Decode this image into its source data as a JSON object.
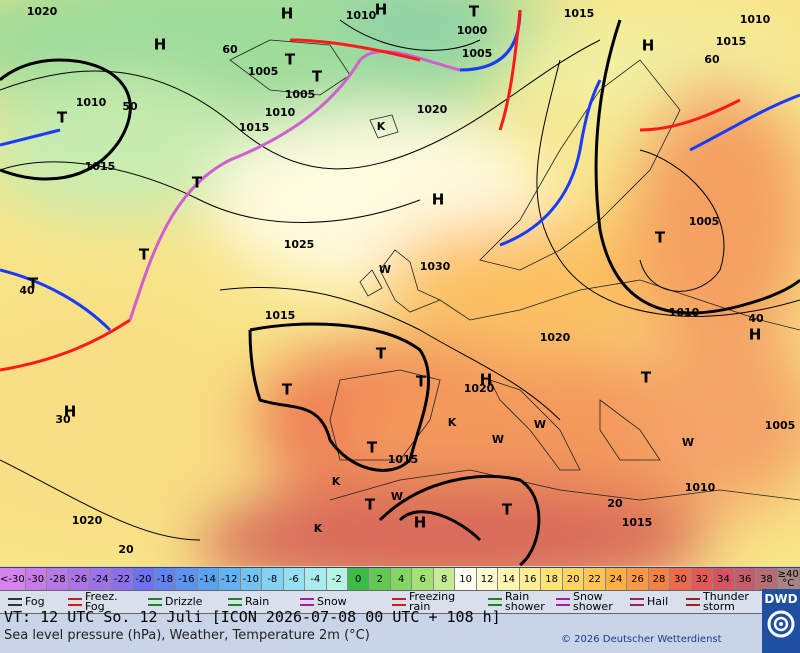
{
  "map": {
    "labels": [
      "1020",
      "H",
      "1010",
      "H",
      "T",
      "1015",
      "1010",
      "H",
      "60",
      "1000",
      "1005",
      "H",
      "1015",
      "60",
      "1005",
      "T",
      "T",
      "1005",
      "1010",
      "50",
      "1010",
      "1020",
      "T",
      "1015",
      "K",
      "1015",
      "T",
      "H",
      "1005",
      "T",
      "1025",
      "T",
      "W",
      "1030",
      "T",
      "40",
      "1015",
      "1010",
      "40",
      "H",
      "1020",
      "T",
      "T",
      "T",
      "H",
      "1020",
      "T",
      "H",
      "30",
      "K",
      "W",
      "W",
      "W",
      "1005",
      "T",
      "1015",
      "K",
      "1010",
      "T",
      "W",
      "20",
      "H",
      "T",
      "1015",
      "1020",
      "K",
      "20"
    ]
  },
  "scale": {
    "below_label": "<-30",
    "above_label": "≥40 °C",
    "below_color": "#d483ec",
    "above_color": "#a98484",
    "values": [
      -30,
      -28,
      -26,
      -24,
      -22,
      -20,
      -18,
      -16,
      -14,
      -12,
      -10,
      -8,
      -6,
      -4,
      -2,
      0,
      2,
      4,
      6,
      8,
      10,
      12,
      14,
      16,
      18,
      20,
      22,
      24,
      26,
      28,
      30,
      32,
      34,
      36,
      38
    ],
    "colors": [
      "#c67be6",
      "#b878e6",
      "#aa74e6",
      "#9c72e8",
      "#8c70ea",
      "#6c72f0",
      "#6282f0",
      "#5c92f0",
      "#5aa2f0",
      "#62b2f2",
      "#72c2f2",
      "#84d2f2",
      "#96e0f2",
      "#a8ecf0",
      "#b8f2e2",
      "#3cbc44",
      "#62c852",
      "#84d662",
      "#a4e074",
      "#c4ec94",
      "#fffff2",
      "#fffad2",
      "#fff4b2",
      "#ffee94",
      "#ffe474",
      "#ffd464",
      "#ffc454",
      "#ffae46",
      "#fc9844",
      "#f48244",
      "#ec6a4a",
      "#e25a58",
      "#d45462",
      "#c45c6c",
      "#b66c74"
    ]
  },
  "legend": [
    "Fog",
    "Freez. Fog",
    "Drizzle",
    "Rain",
    "Snow",
    "Freezing rain",
    "Rain shower",
    "Snow shower",
    "Hail",
    "Thunder storm"
  ],
  "footer": {
    "valid_time": "VT: 12 UTC So.  12 Juli [ICON 2026-07-08  00 UTC + 108 h]",
    "subtitle": "Sea level pressure (hPa), Weather, Temperature 2m (°C)",
    "copyright": "© 2026 Deutscher Wetterdienst",
    "logo": "DWD"
  }
}
